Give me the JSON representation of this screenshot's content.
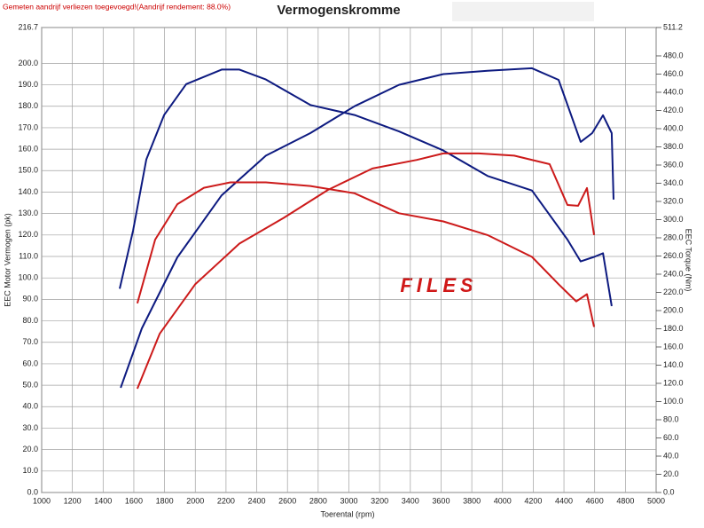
{
  "chart_data": {
    "type": "line",
    "title": "Vermogenskromme",
    "note": "Gemeten aandrijf verliezen toegevoegd!(Aandrijf rendement: 88.0%)",
    "watermark": "FILES",
    "x_label": "Toerental (rpm)",
    "y_label": "EEC Motor Vermogen (pk)",
    "y2_label": "EEC Torque (Nm)",
    "xlim": [
      1000,
      5000
    ],
    "xticks": [
      1000,
      1200,
      1400,
      1600,
      1800,
      2000,
      2200,
      2400,
      2600,
      2800,
      3000,
      3200,
      3400,
      3600,
      3800,
      4000,
      4200,
      4400,
      4600,
      4800,
      5000
    ],
    "ylim": [
      0,
      216.7
    ],
    "yticks": [
      {
        "value": 0,
        "label": "0.0"
      },
      {
        "value": 10,
        "label": "10.0"
      },
      {
        "value": 20,
        "label": "20.0"
      },
      {
        "value": 30,
        "label": "30.0"
      },
      {
        "value": 40,
        "label": "40.0"
      },
      {
        "value": 50,
        "label": "50.0"
      },
      {
        "value": 60,
        "label": "60.0"
      },
      {
        "value": 70,
        "label": "70.0"
      },
      {
        "value": 80,
        "label": "80.0"
      },
      {
        "value": 90,
        "label": "90.0"
      },
      {
        "value": 100,
        "label": "100.0"
      },
      {
        "value": 110,
        "label": "110.0"
      },
      {
        "value": 120,
        "label": "120.0"
      },
      {
        "value": 130,
        "label": "130.0"
      },
      {
        "value": 140,
        "label": "140.0"
      },
      {
        "value": 150,
        "label": "150.0"
      },
      {
        "value": 160,
        "label": "160.0"
      },
      {
        "value": 170,
        "label": "170.0"
      },
      {
        "value": 180,
        "label": "180.0"
      },
      {
        "value": 190,
        "label": "190.0"
      },
      {
        "value": 200,
        "label": "200.0"
      },
      {
        "value": 216.7,
        "label": "216.7"
      }
    ],
    "y2lim": [
      0,
      511.2
    ],
    "y2ticks": [
      {
        "value": 0,
        "label": "0.0"
      },
      {
        "value": 20,
        "label": "20.0"
      },
      {
        "value": 40,
        "label": "40.0"
      },
      {
        "value": 60,
        "label": "60.0"
      },
      {
        "value": 80,
        "label": "80.0"
      },
      {
        "value": 100,
        "label": "100.0"
      },
      {
        "value": 120,
        "label": "120.0"
      },
      {
        "value": 140,
        "label": "140.0"
      },
      {
        "value": 160,
        "label": "160.0"
      },
      {
        "value": 180,
        "label": "180.0"
      },
      {
        "value": 200,
        "label": "200.0"
      },
      {
        "value": 220,
        "label": "220.0"
      },
      {
        "value": 240,
        "label": "240.0"
      },
      {
        "value": 260,
        "label": "260.0"
      },
      {
        "value": 280,
        "label": "280.0"
      },
      {
        "value": 300,
        "label": "300.0"
      },
      {
        "value": 320,
        "label": "320.0"
      },
      {
        "value": 340,
        "label": "340.0"
      },
      {
        "value": 360,
        "label": "360.0"
      },
      {
        "value": 380,
        "label": "380.0"
      },
      {
        "value": 400,
        "label": "400.0"
      },
      {
        "value": 420,
        "label": "420.0"
      },
      {
        "value": 440,
        "label": "440.0"
      },
      {
        "value": 460,
        "label": "460.0"
      },
      {
        "value": 480,
        "label": "480.0"
      },
      {
        "value": 511.2,
        "label": "511.2"
      }
    ],
    "grid": true,
    "series": [
      {
        "color": "#0d1a80",
        "x": [
          1514,
          1652,
          1883,
          2172,
          2460,
          2749,
          3037,
          3326,
          3615,
          3903,
          4192,
          4365,
          4509,
          4584,
          4654,
          4711,
          4723
        ],
        "values": [
          48.8,
          76.5,
          109.6,
          138.5,
          157,
          167.5,
          180,
          190,
          195,
          196.5,
          197.7,
          192.3,
          163.4,
          167.5,
          175.8,
          167.5,
          136.5
        ]
      },
      {
        "color": "#0d1a80",
        "axis": "y2",
        "x": [
          1508,
          1595,
          1681,
          1797,
          1941,
          2172,
          2287,
          2460,
          2749,
          3037,
          3326,
          3615,
          3903,
          4192,
          4423,
          4509,
          4596,
          4654,
          4711
        ],
        "values": [
          224,
          288,
          366,
          415,
          449,
          465,
          465,
          454,
          426,
          415,
          397,
          376,
          348,
          332,
          278,
          254,
          259,
          263,
          205
        ]
      },
      {
        "color": "#cc1a1a",
        "x": [
          1623,
          1768,
          1999,
          2287,
          2576,
          2864,
          3153,
          3442,
          3615,
          3846,
          4076,
          4307,
          4423,
          4492,
          4550,
          4596
        ],
        "values": [
          48.4,
          74,
          97,
          116,
          128,
          141,
          151,
          155,
          158,
          158,
          157,
          153,
          134,
          133.6,
          141.9,
          120
        ]
      },
      {
        "color": "#cc1a1a",
        "axis": "y2",
        "x": [
          1623,
          1739,
          1883,
          2056,
          2229,
          2460,
          2749,
          3037,
          3326,
          3615,
          3903,
          4192,
          4365,
          4480,
          4550,
          4596
        ],
        "values": [
          208,
          278,
          317,
          335,
          341,
          341,
          337,
          329,
          307,
          298,
          283,
          259,
          229,
          210,
          218,
          182
        ]
      }
    ]
  }
}
